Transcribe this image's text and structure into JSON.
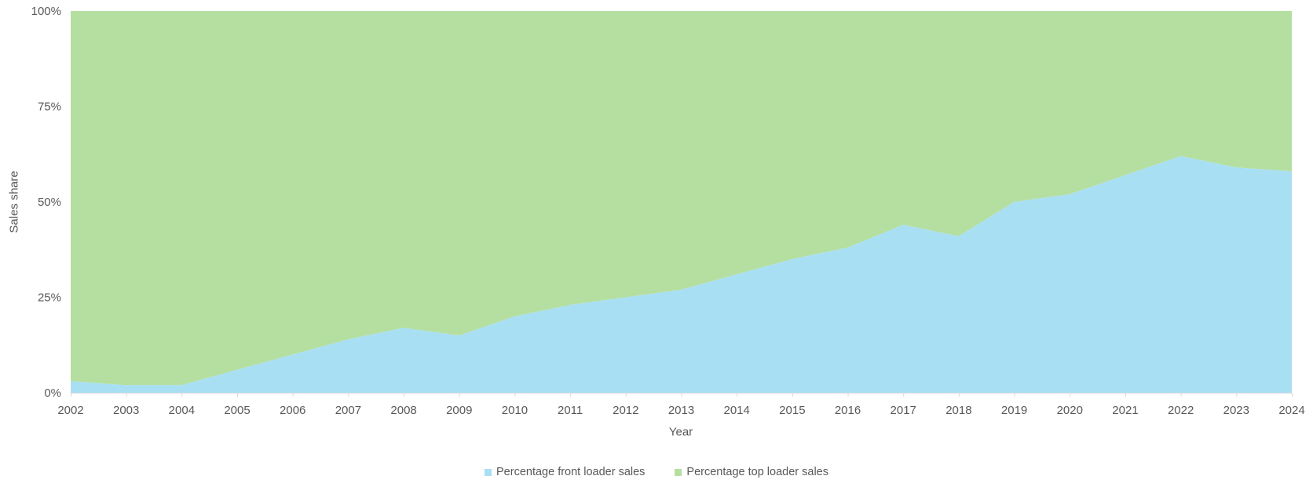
{
  "chart_data": {
    "type": "area",
    "variant": "100% stacked area",
    "title": "",
    "xlabel": "Year",
    "ylabel": "Sales share",
    "x": [
      2002,
      2003,
      2004,
      2005,
      2006,
      2007,
      2008,
      2009,
      2010,
      2011,
      2012,
      2013,
      2014,
      2015,
      2016,
      2017,
      2018,
      2019,
      2020,
      2021,
      2022,
      2023,
      2024
    ],
    "series": [
      {
        "name": "Percentage front loader sales",
        "color": "#A9DFF2",
        "values": [
          3,
          2,
          2,
          6,
          10,
          14,
          17,
          15,
          20,
          23,
          25,
          27,
          31,
          35,
          38,
          44,
          41,
          50,
          52,
          57,
          62,
          59,
          58
        ]
      },
      {
        "name": "Percentage top loader sales",
        "color": "#B5DFA0",
        "values": [
          97,
          98,
          98,
          94,
          90,
          86,
          83,
          85,
          80,
          77,
          75,
          73,
          69,
          65,
          62,
          56,
          59,
          50,
          48,
          43,
          38,
          41,
          42
        ]
      }
    ],
    "y_ticks": [
      {
        "value": 0,
        "label": "0%"
      },
      {
        "value": 25,
        "label": "25%"
      },
      {
        "value": 50,
        "label": "50%"
      },
      {
        "value": 75,
        "label": "75%"
      },
      {
        "value": 100,
        "label": "100%"
      }
    ],
    "ylim": [
      0,
      100
    ],
    "grid": false,
    "legend_position": "bottom"
  },
  "style": {
    "axis_line_color": "#D9D9D9",
    "axis_text_color": "#595959",
    "background": "#ffffff"
  }
}
